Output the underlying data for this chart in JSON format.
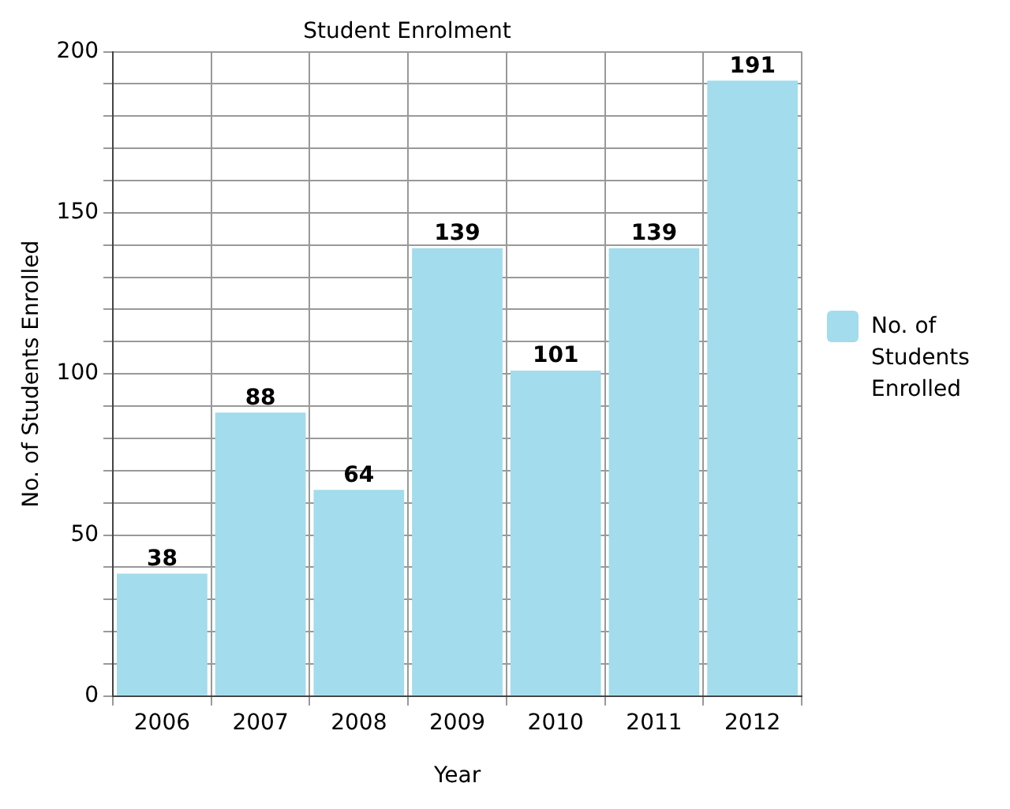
{
  "chart_data": {
    "type": "bar",
    "title": "Student Enrolment",
    "xlabel": "Year",
    "ylabel": "No. of Students Enrolled",
    "categories": [
      "2006",
      "2007",
      "2008",
      "2009",
      "2010",
      "2011",
      "2012"
    ],
    "series": [
      {
        "name": "No. of Students Enrolled",
        "color": "#a3dcec",
        "values": [
          38,
          88,
          64,
          139,
          101,
          139,
          191
        ]
      }
    ],
    "ylim": [
      0,
      200
    ],
    "yticks": [
      0,
      {
        "value": 10,
        "label": null
      },
      {
        "value": 20,
        "label": null
      },
      {
        "value": 30,
        "label": null
      },
      {
        "value": 40,
        "label": null
      },
      50,
      {
        "value": 60,
        "label": null
      },
      {
        "value": 70,
        "label": null
      },
      {
        "value": 80,
        "label": null
      },
      {
        "value": 90,
        "label": null
      },
      100,
      {
        "value": 110,
        "label": null
      },
      {
        "value": 120,
        "label": null
      },
      {
        "value": 130,
        "label": null
      },
      {
        "value": 140,
        "label": null
      },
      150,
      {
        "value": 160,
        "label": null
      },
      {
        "value": 170,
        "label": null
      },
      {
        "value": 180,
        "label": null
      },
      {
        "value": 190,
        "label": null
      },
      200
    ],
    "grid": true,
    "legend": "right",
    "data_labels": true
  }
}
